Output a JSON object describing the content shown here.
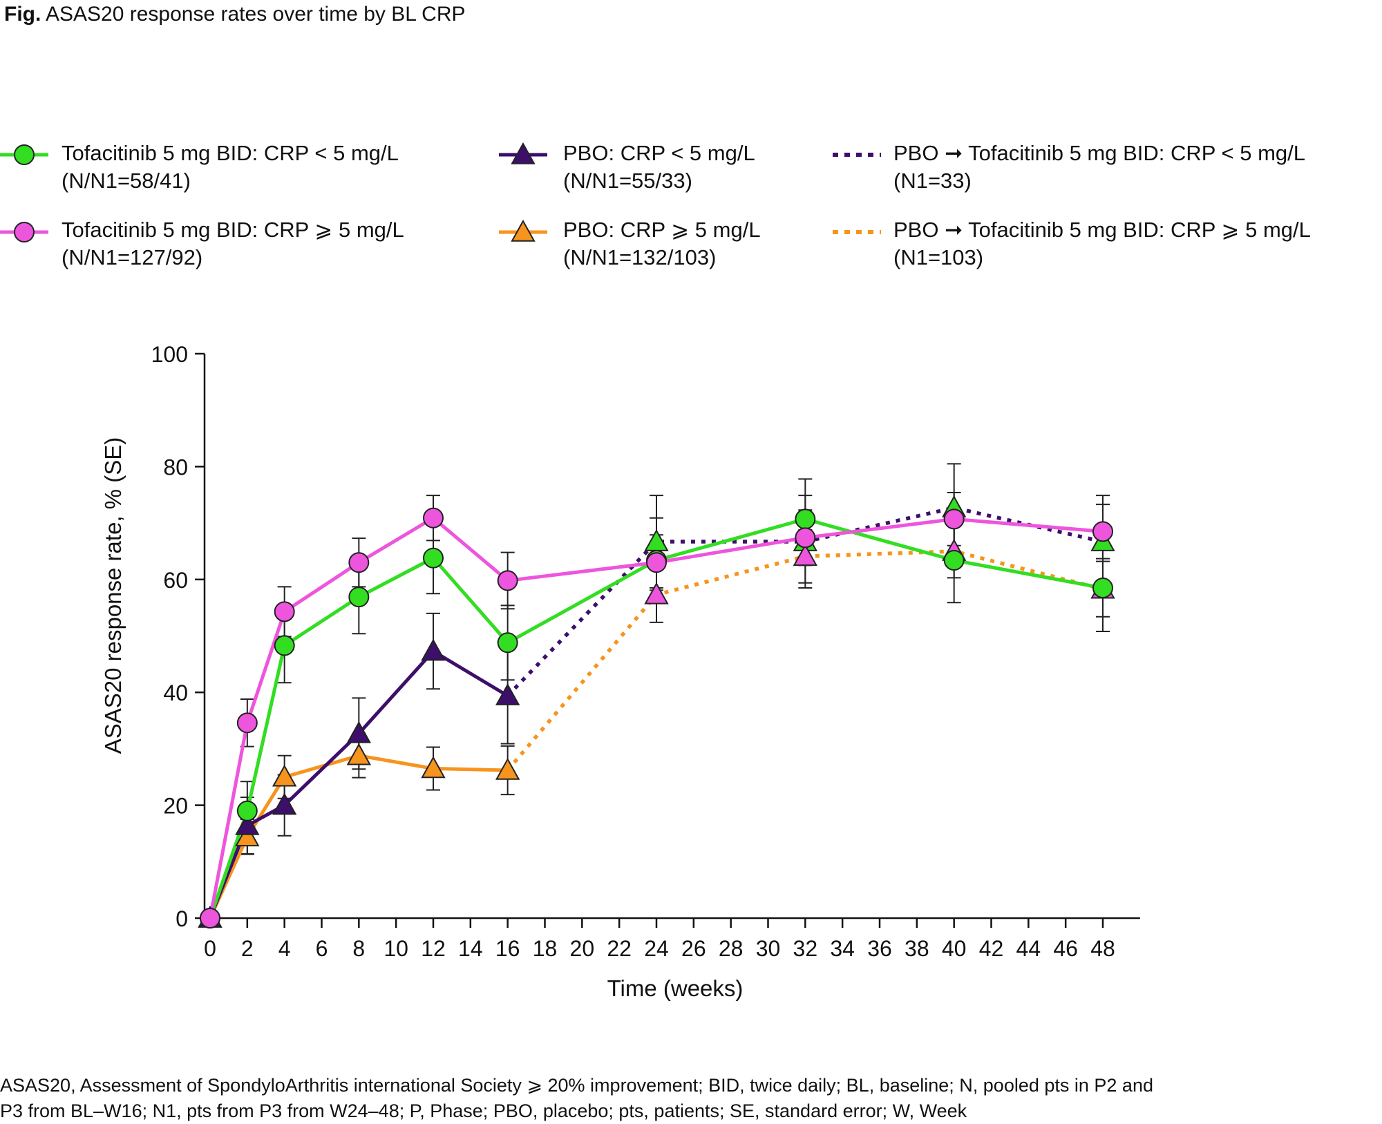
{
  "figure": {
    "title_bold": "Fig.",
    "title_rest": " ASAS20 response rates over time by BL CRP",
    "footnote_line1": "ASAS20, Assessment of SpondyloArthritis international Society ⩾ 20% improvement; BID, twice daily; BL, baseline; N, pooled pts in P2 and",
    "footnote_line2": "P3 from BL–W16; N1, pts from P3 from W24–48; P, Phase; PBO, placebo; pts, patients; SE, standard error; W, Week"
  },
  "legend": [
    {
      "line1": "Tofacitinib 5 mg BID: CRP < 5 mg/L",
      "line2": "(N/N1=58/41)"
    },
    {
      "line1": "Tofacitinib 5 mg BID: CRP ⩾ 5 mg/L",
      "line2": "(N/N1=127/92)"
    },
    {
      "line1": "PBO: CRP < 5 mg/L",
      "line2": "(N/N1=55/33)"
    },
    {
      "line1": "PBO: CRP ⩾ 5 mg/L",
      "line2": "(N/N1=132/103)"
    },
    {
      "line1": "PBO ➞ Tofacitinib 5 mg BID: CRP < 5 mg/L",
      "line2": "(N1=33)"
    },
    {
      "line1": "PBO ➞ Tofacitinib 5 mg BID: CRP ⩾ 5 mg/L",
      "line2": "(N1=103)"
    }
  ],
  "colors": {
    "green": "#33dd22",
    "pink": "#ee55dd",
    "purple": "#3d0f6b",
    "orange": "#f7941d",
    "axis": "#111111"
  },
  "chart_data": {
    "type": "line",
    "title": "ASAS20 response rates over time by BL CRP",
    "xlabel": "Time (weeks)",
    "ylabel": "ASAS20 response rate, % (SE)",
    "xlim": [
      0,
      50
    ],
    "ylim": [
      0,
      100
    ],
    "xticks": [
      0,
      2,
      4,
      6,
      8,
      10,
      12,
      14,
      16,
      18,
      20,
      22,
      24,
      26,
      28,
      30,
      32,
      34,
      36,
      38,
      40,
      42,
      44,
      46,
      48
    ],
    "yticks": [
      0,
      20,
      40,
      60,
      80,
      100
    ],
    "series": [
      {
        "name": "Tofacitinib 5 mg BID: CRP < 5 mg/L",
        "color": "green",
        "marker": "circle",
        "dash": "solid",
        "x": [
          0,
          2,
          4,
          8,
          12,
          16,
          24,
          32,
          40,
          48
        ],
        "y": [
          0,
          19,
          48.3,
          56.9,
          63.8,
          48.8,
          63.4,
          70.7,
          63.4,
          58.5
        ],
        "se": [
          0,
          5.2,
          6.6,
          6.5,
          6.3,
          6.6,
          7.5,
          7.1,
          7.5,
          7.7
        ]
      },
      {
        "name": "Tofacitinib 5 mg BID: CRP ⩾ 5 mg/L",
        "color": "pink",
        "marker": "circle",
        "dash": "solid",
        "x": [
          0,
          2,
          4,
          8,
          12,
          16,
          24,
          32,
          40,
          48
        ],
        "y": [
          0,
          34.6,
          54.3,
          63,
          70.9,
          59.8,
          63,
          67.4,
          70.7,
          68.5
        ],
        "se": [
          0,
          4.2,
          4.4,
          4.3,
          4,
          5,
          4.9,
          4.9,
          4.7,
          4.8
        ]
      },
      {
        "name": "PBO: CRP < 5 mg/L",
        "color": "purple",
        "marker": "triangle",
        "dash": "solid",
        "x": [
          0,
          2,
          4,
          8,
          12,
          16
        ],
        "y": [
          0,
          16.4,
          20,
          32.7,
          47.3,
          39.4
        ],
        "se": [
          0,
          5,
          5.4,
          6.3,
          6.7,
          8.5
        ]
      },
      {
        "name": "PBO: CRP ⩾ 5 mg/L",
        "color": "orange",
        "marker": "triangle",
        "dash": "solid",
        "x": [
          0,
          2,
          4,
          8,
          12,
          16
        ],
        "y": [
          0,
          14.4,
          25,
          28.8,
          26.5,
          26.2
        ],
        "se": [
          0,
          3.1,
          3.8,
          3.9,
          3.8,
          4.3
        ]
      },
      {
        "name": "PBO ➞ Tofacitinib 5 mg BID: CRP < 5 mg/L",
        "color": "purple",
        "marker": "triangle-green",
        "dash": "dotted",
        "x": [
          16,
          24,
          32,
          40,
          48
        ],
        "y": [
          39.4,
          66.7,
          66.7,
          72.7,
          66.7
        ],
        "se": [
          8.5,
          8.2,
          8.2,
          7.8,
          8.2
        ]
      },
      {
        "name": "PBO ➞ Tofacitinib 5 mg BID: CRP ⩾ 5 mg/L",
        "color": "orange",
        "marker": "triangle-pink",
        "dash": "dotted",
        "x": [
          16,
          24,
          32,
          40,
          48
        ],
        "y": [
          26.2,
          57.3,
          64.1,
          65,
          58.3
        ],
        "se": [
          4.3,
          4.9,
          4.7,
          4.7,
          4.9
        ]
      }
    ]
  }
}
